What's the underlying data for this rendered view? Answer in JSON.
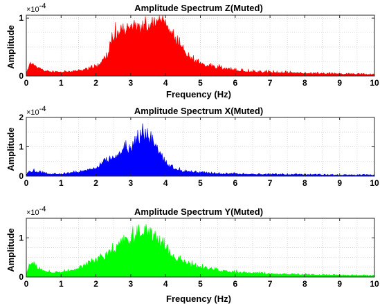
{
  "chart_data": [
    {
      "type": "area",
      "title": "Amplitude Spectrum Z(Muted)",
      "xlabel": "Frequency (Hz)",
      "ylabel": "Amplitude",
      "exponent_label": "×10",
      "exponent_power": "-4",
      "xlim": [
        0,
        10
      ],
      "ylim": [
        0,
        1.05
      ],
      "xticks": [
        "0",
        "1",
        "2",
        "3",
        "4",
        "5",
        "6",
        "7",
        "8",
        "9",
        "10"
      ],
      "yticks": [
        {
          "value": 0,
          "label": "0"
        },
        {
          "value": 1,
          "label": "1"
        }
      ],
      "grid": true,
      "color": "#ff0000",
      "series": [
        {
          "x": [
            0,
            0.1,
            0.2,
            0.3,
            0.5,
            0.8,
            1.0,
            1.5,
            2.0,
            2.3,
            2.5,
            2.7,
            2.9,
            3.1,
            3.3,
            3.5,
            3.7,
            3.9,
            4.0,
            4.2,
            4.4,
            4.6,
            4.8,
            5.0,
            5.5,
            6.0,
            7.0,
            8.0,
            9.0,
            10.0
          ],
          "y": [
            0.06,
            0.18,
            0.2,
            0.14,
            0.08,
            0.06,
            0.06,
            0.08,
            0.14,
            0.3,
            0.58,
            0.72,
            0.8,
            0.82,
            0.8,
            0.82,
            0.86,
            0.88,
            0.8,
            0.65,
            0.5,
            0.35,
            0.25,
            0.18,
            0.12,
            0.08,
            0.05,
            0.04,
            0.03,
            0.02
          ],
          "peak": [
            0.06,
            0.24,
            0.24,
            0.18,
            0.12,
            0.09,
            0.08,
            0.12,
            0.2,
            0.42,
            0.82,
            0.95,
            1.0,
            0.98,
            0.94,
            0.99,
            1.0,
            1.02,
            1.0,
            0.85,
            0.68,
            0.48,
            0.36,
            0.27,
            0.2,
            0.14,
            0.1,
            0.07,
            0.06,
            0.04
          ]
        }
      ]
    },
    {
      "type": "area",
      "title": "Amplitude Spectrum X(Muted)",
      "xlabel": "",
      "ylabel": "Amplitude",
      "exponent_label": "×10",
      "exponent_power": "-4",
      "xlim": [
        0,
        10
      ],
      "ylim": [
        0,
        2
      ],
      "xticks": [
        "0",
        "1",
        "2",
        "3",
        "4",
        "5",
        "6",
        "7",
        "8",
        "9",
        "10"
      ],
      "yticks": [
        {
          "value": 0,
          "label": "0"
        },
        {
          "value": 1,
          "label": "1"
        },
        {
          "value": 2,
          "label": "2"
        }
      ],
      "grid": true,
      "color": "#0000ff",
      "series": [
        {
          "x": [
            0,
            0.1,
            0.2,
            0.4,
            0.7,
            1.0,
            1.5,
            2.0,
            2.3,
            2.6,
            2.8,
            3.0,
            3.2,
            3.4,
            3.6,
            3.8,
            4.0,
            4.2,
            4.5,
            5.0,
            5.5,
            6.0,
            7.0,
            8.0,
            9.0,
            10.0
          ],
          "y": [
            0.05,
            0.12,
            0.14,
            0.1,
            0.06,
            0.06,
            0.12,
            0.25,
            0.45,
            0.65,
            0.85,
            0.88,
            1.15,
            1.25,
            1.1,
            0.75,
            0.42,
            0.25,
            0.15,
            0.1,
            0.07,
            0.06,
            0.05,
            0.04,
            0.03,
            0.03
          ],
          "peak": [
            0.1,
            0.22,
            0.26,
            0.18,
            0.1,
            0.1,
            0.2,
            0.38,
            0.65,
            0.98,
            1.18,
            1.2,
            1.72,
            1.7,
            1.52,
            1.05,
            0.6,
            0.38,
            0.24,
            0.17,
            0.13,
            0.12,
            0.1,
            0.08,
            0.07,
            0.06
          ]
        }
      ]
    },
    {
      "type": "area",
      "title": "Amplitude Spectrum Y(Muted)",
      "xlabel": "Frequency (Hz)",
      "ylabel": "Amplitude",
      "exponent_label": "×10",
      "exponent_power": "-4",
      "xlim": [
        0,
        10
      ],
      "ylim": [
        0,
        1.5
      ],
      "xticks": [
        "0",
        "1",
        "2",
        "3",
        "4",
        "5",
        "6",
        "7",
        "8",
        "9",
        "10"
      ],
      "yticks": [
        {
          "value": 0,
          "label": "0"
        },
        {
          "value": 1,
          "label": "1"
        }
      ],
      "grid": true,
      "color": "#00ff00",
      "series": [
        {
          "x": [
            0,
            0.1,
            0.2,
            0.4,
            0.7,
            1.0,
            1.5,
            2.0,
            2.4,
            2.7,
            3.0,
            3.2,
            3.4,
            3.5,
            3.7,
            3.9,
            4.0,
            4.3,
            4.6,
            5.0,
            5.5,
            6.0,
            7.0,
            8.0,
            9.0,
            10.0
          ],
          "y": [
            0.1,
            0.3,
            0.28,
            0.18,
            0.1,
            0.1,
            0.2,
            0.4,
            0.55,
            0.75,
            0.9,
            0.95,
            1.0,
            1.1,
            0.95,
            0.8,
            0.65,
            0.45,
            0.3,
            0.22,
            0.15,
            0.1,
            0.07,
            0.05,
            0.04,
            0.03
          ],
          "peak": [
            0.16,
            0.42,
            0.4,
            0.26,
            0.16,
            0.16,
            0.3,
            0.58,
            0.8,
            1.05,
            1.22,
            1.25,
            1.35,
            1.48,
            1.25,
            1.05,
            0.9,
            0.62,
            0.44,
            0.33,
            0.24,
            0.18,
            0.12,
            0.09,
            0.07,
            0.05
          ]
        }
      ]
    }
  ]
}
